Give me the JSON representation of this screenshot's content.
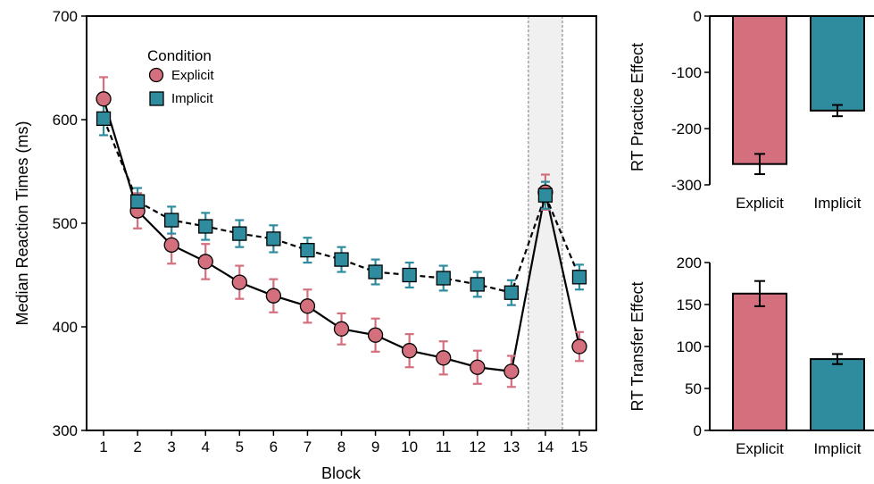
{
  "chart_data": [
    {
      "type": "line",
      "xlabel": "Block",
      "ylabel": "Median Reaction Times (ms)",
      "x": [
        1,
        2,
        3,
        4,
        5,
        6,
        7,
        8,
        9,
        10,
        11,
        12,
        13,
        14,
        15
      ],
      "xlim": [
        0.5,
        15.5
      ],
      "ylim": [
        300,
        700
      ],
      "yticks": [
        300,
        400,
        500,
        600,
        700
      ],
      "highlight_block": 14,
      "legend_title": "Condition",
      "legend_position": "top-left",
      "series": [
        {
          "name": "Explicit",
          "color": "#d4707e",
          "marker": "circle",
          "line_style": "solid",
          "values": [
            620,
            512,
            479,
            463,
            443,
            430,
            420,
            398,
            392,
            377,
            370,
            361,
            357,
            530,
            381
          ],
          "errors": [
            21,
            17,
            18,
            17,
            16,
            16,
            16,
            15,
            16,
            16,
            16,
            16,
            15,
            17,
            14
          ]
        },
        {
          "name": "Implicit",
          "color": "#2e8c9e",
          "marker": "square",
          "line_style": "dashed",
          "values": [
            601,
            521,
            503,
            497,
            490,
            485,
            474,
            465,
            453,
            450,
            447,
            441,
            433,
            527,
            448
          ],
          "errors": [
            16,
            13,
            13,
            13,
            13,
            13,
            12,
            12,
            12,
            12,
            12,
            12,
            12,
            13,
            12
          ]
        }
      ]
    },
    {
      "type": "bar",
      "ylabel": "RT Practice Effect",
      "categories": [
        "Explicit",
        "Implicit"
      ],
      "values": [
        -263,
        -168
      ],
      "errors": [
        18,
        10
      ],
      "ylim": [
        -300,
        0
      ],
      "yticks": [
        0,
        -100,
        -200,
        -300
      ],
      "colors": [
        "#d4707e",
        "#2e8c9e"
      ]
    },
    {
      "type": "bar",
      "ylabel": "RT Transfer Effect",
      "categories": [
        "Explicit",
        "Implicit"
      ],
      "values": [
        163,
        85
      ],
      "errors": [
        15,
        6
      ],
      "ylim": [
        0,
        200
      ],
      "yticks": [
        0,
        50,
        100,
        150,
        200
      ],
      "colors": [
        "#d4707e",
        "#2e8c9e"
      ]
    }
  ]
}
